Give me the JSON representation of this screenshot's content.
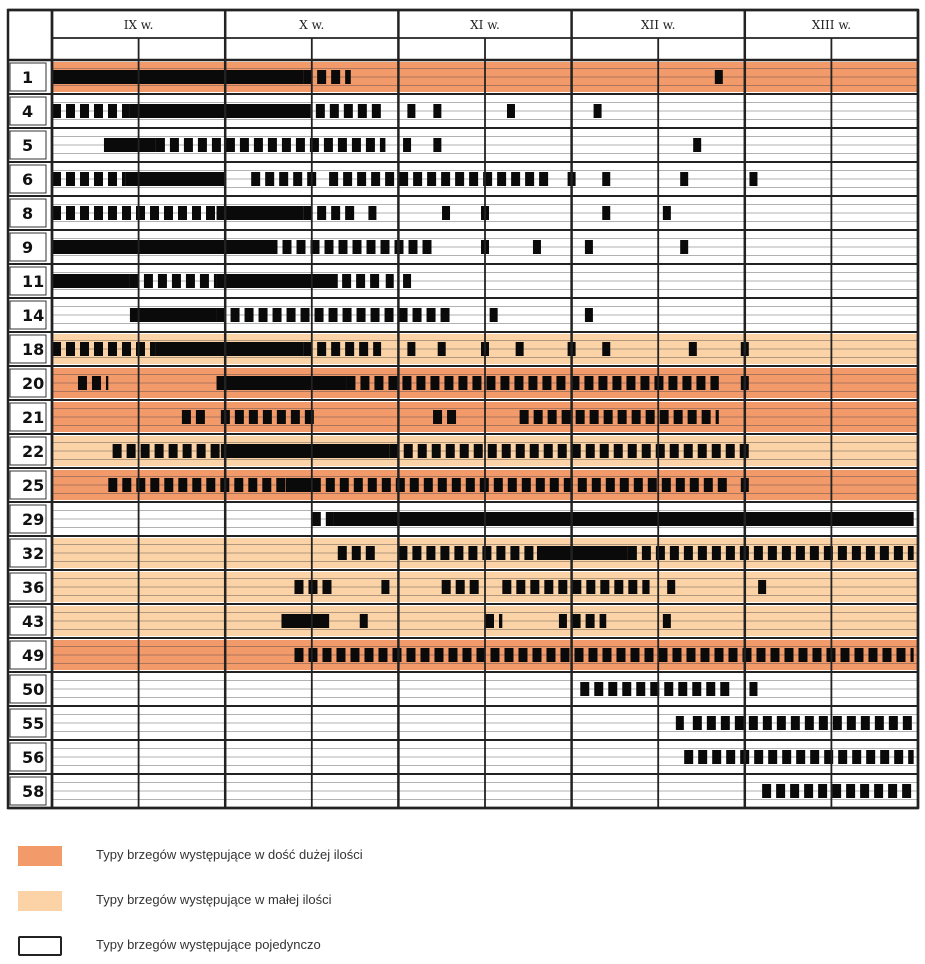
{
  "chart_data": {
    "type": "timeline",
    "centuries": [
      "IX w.",
      "X w.",
      "XI w.",
      "XII w.",
      "XIII w."
    ],
    "half_centuries": 10,
    "row_labels": [
      "1",
      "4",
      "5",
      "6",
      "8",
      "9",
      "11",
      "14",
      "18",
      "20",
      "21",
      "22",
      "25",
      "29",
      "32",
      "36",
      "43",
      "49",
      "50",
      "55",
      "56",
      "58"
    ],
    "rows": [
      {
        "label": "1",
        "shade": "high",
        "solid": [
          [
            0.0,
            2.9
          ]
        ],
        "dashed": [
          [
            1.2,
            1.6
          ],
          [
            2.9,
            3.45
          ]
        ],
        "ticks": [
          7.7
        ]
      },
      {
        "label": "4",
        "shade": "none",
        "solid": [
          [
            0.9,
            2.9
          ]
        ],
        "dashed": [
          [
            0.0,
            0.9
          ],
          [
            2.4,
            3.85
          ]
        ],
        "ticks": [
          4.15,
          4.45,
          5.3,
          6.3
        ]
      },
      {
        "label": "5",
        "shade": "none",
        "solid": [
          [
            0.6,
            1.2
          ]
        ],
        "dashed": [
          [
            1.2,
            3.85
          ]
        ],
        "ticks": [
          4.1,
          4.45,
          7.45
        ]
      },
      {
        "label": "6",
        "shade": "none",
        "solid": [
          [
            0.85,
            2.0
          ]
        ],
        "dashed": [
          [
            0.0,
            0.85
          ],
          [
            2.3,
            3.1
          ],
          [
            3.2,
            5.8
          ]
        ],
        "ticks": [
          6.0,
          6.4,
          7.3,
          8.1
        ]
      },
      {
        "label": "8",
        "shade": "none",
        "solid": [
          [
            1.9,
            2.9
          ]
        ],
        "dashed": [
          [
            0.0,
            1.9
          ],
          [
            2.9,
            3.55
          ]
        ],
        "ticks": [
          3.7,
          4.55,
          5.0,
          6.4,
          7.1
        ]
      },
      {
        "label": "9",
        "shade": "none",
        "solid": [
          [
            0.0,
            2.5
          ]
        ],
        "dashed": [
          [
            0.0,
            0.4
          ],
          [
            2.5,
            4.45
          ]
        ],
        "ticks": [
          5.0,
          5.6,
          6.2,
          7.3
        ]
      },
      {
        "label": "11",
        "shade": "none",
        "solid": [
          [
            0.0,
            0.9
          ],
          [
            1.9,
            3.3
          ]
        ],
        "dashed": [
          [
            0.9,
            1.9
          ],
          [
            3.35,
            3.8
          ]
        ],
        "ticks": [
          3.9,
          4.1
        ]
      },
      {
        "label": "14",
        "shade": "none",
        "solid": [
          [
            0.9,
            1.9
          ]
        ],
        "dashed": [
          [
            1.9,
            4.6
          ]
        ],
        "ticks": [
          5.1,
          6.2
        ]
      },
      {
        "label": "18",
        "shade": "low",
        "solid": [
          [
            1.2,
            2.9
          ]
        ],
        "dashed": [
          [
            0.0,
            1.2
          ],
          [
            2.9,
            3.8
          ]
        ],
        "ticks": [
          4.15,
          4.5,
          5.0,
          5.4,
          6.0,
          6.4,
          7.4,
          8.0
        ]
      },
      {
        "label": "20",
        "shade": "high",
        "solid": [
          [
            1.9,
            3.4
          ]
        ],
        "dashed": [
          [
            0.3,
            0.65
          ],
          [
            3.4,
            7.7
          ]
        ],
        "ticks": [
          8.0
        ]
      },
      {
        "label": "21",
        "shade": "high",
        "solid": [],
        "dashed": [
          [
            1.5,
            1.8
          ],
          [
            1.95,
            3.1
          ],
          [
            4.4,
            4.7
          ],
          [
            5.4,
            7.7
          ]
        ],
        "ticks": []
      },
      {
        "label": "22",
        "shade": "low",
        "solid": [
          [
            1.95,
            3.9
          ]
        ],
        "dashed": [
          [
            0.7,
            1.95
          ],
          [
            3.9,
            8.1
          ]
        ],
        "ticks": []
      },
      {
        "label": "25",
        "shade": "high",
        "solid": [
          [
            2.7,
            3.0
          ]
        ],
        "dashed": [
          [
            0.65,
            2.7
          ],
          [
            3.0,
            7.8
          ]
        ],
        "ticks": [
          8.0
        ]
      },
      {
        "label": "29",
        "shade": "none",
        "solid": [
          [
            3.25,
            9.95
          ]
        ],
        "dashed": [
          [
            3.0,
            3.25
          ]
        ],
        "ticks": []
      },
      {
        "label": "32",
        "shade": "low",
        "solid": [
          [
            5.6,
            6.65
          ]
        ],
        "dashed": [
          [
            3.3,
            3.75
          ],
          [
            4.0,
            5.6
          ],
          [
            6.65,
            9.95
          ]
        ],
        "ticks": []
      },
      {
        "label": "36",
        "shade": "low",
        "solid": [],
        "dashed": [
          [
            2.8,
            3.3
          ],
          [
            4.5,
            5.0
          ],
          [
            5.2,
            6.9
          ]
        ],
        "ticks": [
          3.85,
          7.15,
          8.2
        ]
      },
      {
        "label": "43",
        "shade": "low",
        "solid": [
          [
            2.65,
            3.2
          ]
        ],
        "dashed": [
          [
            5.0,
            5.2
          ],
          [
            6.0,
            6.4
          ]
        ],
        "ticks": [
          3.6,
          5.9,
          7.1
        ]
      },
      {
        "label": "49",
        "shade": "high",
        "solid": [],
        "dashed": [
          [
            2.8,
            9.95
          ]
        ],
        "ticks": []
      },
      {
        "label": "50",
        "shade": "none",
        "solid": [],
        "dashed": [
          [
            6.1,
            7.9
          ]
        ],
        "ticks": [
          8.1
        ]
      },
      {
        "label": "55",
        "shade": "none",
        "solid": [],
        "dashed": [
          [
            7.4,
            9.95
          ]
        ],
        "ticks": [
          7.25
        ]
      },
      {
        "label": "56",
        "shade": "none",
        "solid": [],
        "dashed": [
          [
            7.3,
            9.95
          ]
        ],
        "ticks": []
      },
      {
        "label": "58",
        "shade": "none",
        "solid": [],
        "dashed": [
          [
            8.2,
            9.95
          ]
        ],
        "ticks": []
      }
    ],
    "colors": {
      "high": "#f39a6b",
      "low": "#fbd3a6",
      "none": "#ffffff",
      "bar": "#0a0a0a",
      "grid": "#222222"
    },
    "legend": [
      {
        "shade": "high",
        "label": "Typy brzegów występujące w dość dużej ilości"
      },
      {
        "shade": "low",
        "label": "Typy brzegów występujące w małej ilości"
      },
      {
        "shade": "none",
        "label": "Typy brzegów występujące pojedynczo"
      }
    ]
  }
}
